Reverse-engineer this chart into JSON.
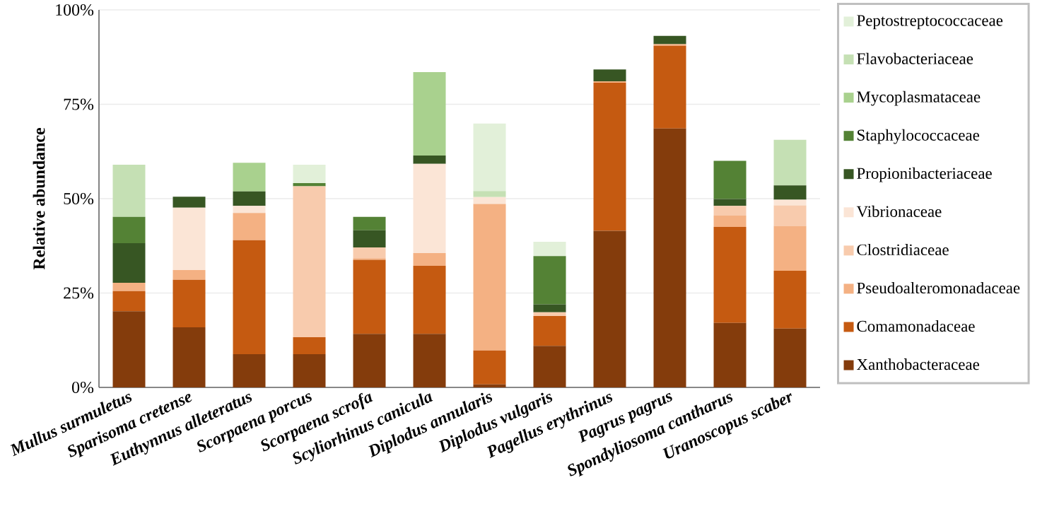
{
  "chart_data": {
    "type": "bar",
    "stacked": true,
    "ylabel": "Relative abundance",
    "categories": [
      "Mullus surmuletus",
      "Sparisoma cretense",
      "Euthynnus alleteratus",
      "Scorpaena porcus",
      "Scorpaena scrofa",
      "Scyliorhinus canicula",
      "Diplodus annularis",
      "Diplodus vulgaris",
      "Pagellus erythrinus",
      "Pagrus pagrus",
      "Spondyliosoma cantharus",
      "Uranoscopus scaber"
    ],
    "series": [
      {
        "name": "Xanthobacteraceae",
        "color": "#843c0c",
        "values": [
          20.2,
          15.9,
          8.8,
          8.8,
          14.2,
          14.2,
          0.8,
          11,
          41.5,
          68.6,
          17.1,
          15.6
        ]
      },
      {
        "name": "Comamonadaceae",
        "color": "#c55a11",
        "values": [
          5.3,
          12.6,
          30.2,
          4.5,
          19.6,
          18,
          9,
          7.9,
          39.2,
          21.9,
          25.4,
          15.3
        ]
      },
      {
        "name": "Pseudoalteromonadaceae",
        "color": "#f4b183",
        "values": [
          2.2,
          2.6,
          7.2,
          null,
          0.4,
          3.4,
          38.8,
          null,
          0.4,
          0.4,
          3,
          11.9
        ]
      },
      {
        "name": "Clostridiaceae",
        "color": "#f8cbad",
        "values": [
          null,
          null,
          null,
          40,
          2.9,
          null,
          null,
          1,
          null,
          null,
          2.6,
          5.4
        ]
      },
      {
        "name": "Vibrionaceae",
        "color": "#fbe5d6",
        "values": [
          null,
          16.5,
          1.9,
          null,
          null,
          23.6,
          1.8,
          null,
          null,
          null,
          null,
          1.5
        ]
      },
      {
        "name": "Propionibacteriaceae",
        "color": "#375623",
        "values": [
          10.5,
          2.9,
          3.8,
          null,
          4.5,
          2.2,
          null,
          2.1,
          3.1,
          2.2,
          1.8,
          3.8
        ]
      },
      {
        "name": "Staphylococcaceae",
        "color": "#548235",
        "values": [
          7,
          null,
          null,
          0.8,
          3.6,
          null,
          null,
          12.8,
          null,
          null,
          10.1,
          null
        ]
      },
      {
        "name": "Mycoplasmataceae",
        "color": "#a9d18e",
        "values": [
          null,
          null,
          7.6,
          null,
          null,
          22.1,
          null,
          null,
          null,
          null,
          null,
          null
        ]
      },
      {
        "name": "Flavobacteriaceae",
        "color": "#c5e0b4",
        "values": [
          13.8,
          null,
          null,
          null,
          null,
          null,
          1.6,
          null,
          null,
          null,
          null,
          12.1
        ]
      },
      {
        "name": "Peptostreptococcaceae",
        "color": "#e2f0d9",
        "values": [
          null,
          null,
          null,
          4.9,
          null,
          null,
          17.9,
          3.8,
          null,
          null,
          null,
          null
        ]
      }
    ],
    "ylim": [
      0,
      100
    ],
    "yticks": [
      {
        "value": 0,
        "label": "0%"
      },
      {
        "value": 25,
        "label": "25%"
      },
      {
        "value": 50,
        "label": "50%"
      },
      {
        "value": 75,
        "label": "75%"
      },
      {
        "value": 100,
        "label": "100%"
      }
    ],
    "grid": "y",
    "legend": "right"
  }
}
